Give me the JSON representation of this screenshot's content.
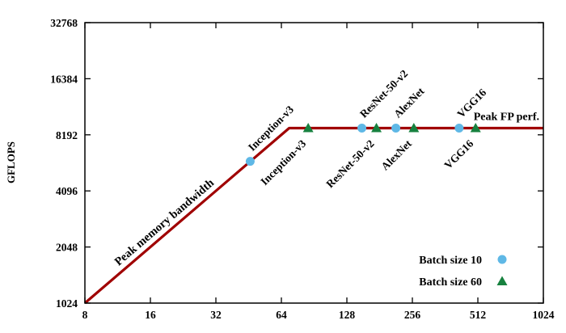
{
  "chart_data": {
    "type": "scatter",
    "title": "",
    "xlabel": "",
    "ylabel": "GFLOPS",
    "x_scale": "log2",
    "y_scale": "log2",
    "xlim": [
      8,
      1024
    ],
    "ylim": [
      1024,
      32768
    ],
    "x_ticks": [
      8,
      16,
      32,
      64,
      128,
      256,
      512,
      1024
    ],
    "y_ticks": [
      1024,
      2048,
      4096,
      8192,
      16384,
      32768
    ],
    "grid": false,
    "axis_color": "#000000",
    "roofline": {
      "peak_gflops": 8900,
      "memory_bandwidth_gflops_per_unit_x": 128,
      "ridge_x": 69.5,
      "color": "#a00000",
      "bandwidth_label": "Peak memory bandwidth",
      "peak_label": "Peak FP perf."
    },
    "legend": {
      "position": "bottom-right",
      "entries": [
        "Batch size 10",
        "Batch size 60"
      ]
    },
    "series": [
      {
        "name": "Batch size 10",
        "marker": "circle",
        "color": "#5fb8e6",
        "points": [
          {
            "label": "Inception-v3",
            "x": 46,
            "y": 5900,
            "label_side": "above"
          },
          {
            "label": "ResNet-50-v2",
            "x": 150,
            "y": 8900,
            "label_side": "above"
          },
          {
            "label": "AlexNet",
            "x": 215,
            "y": 8900,
            "label_side": "above"
          },
          {
            "label": "VGG16",
            "x": 420,
            "y": 8900,
            "label_side": "above"
          }
        ]
      },
      {
        "name": "Batch size 60",
        "marker": "triangle",
        "color": "#17813f",
        "points": [
          {
            "label": "Inception-v3",
            "x": 85,
            "y": 8900,
            "label_side": "below"
          },
          {
            "label": "ResNet-50-v2",
            "x": 175,
            "y": 8900,
            "label_side": "below"
          },
          {
            "label": "AlexNet",
            "x": 260,
            "y": 8900,
            "label_side": "below"
          },
          {
            "label": "VGG16",
            "x": 500,
            "y": 8900,
            "label_side": "below"
          }
        ]
      }
    ]
  }
}
